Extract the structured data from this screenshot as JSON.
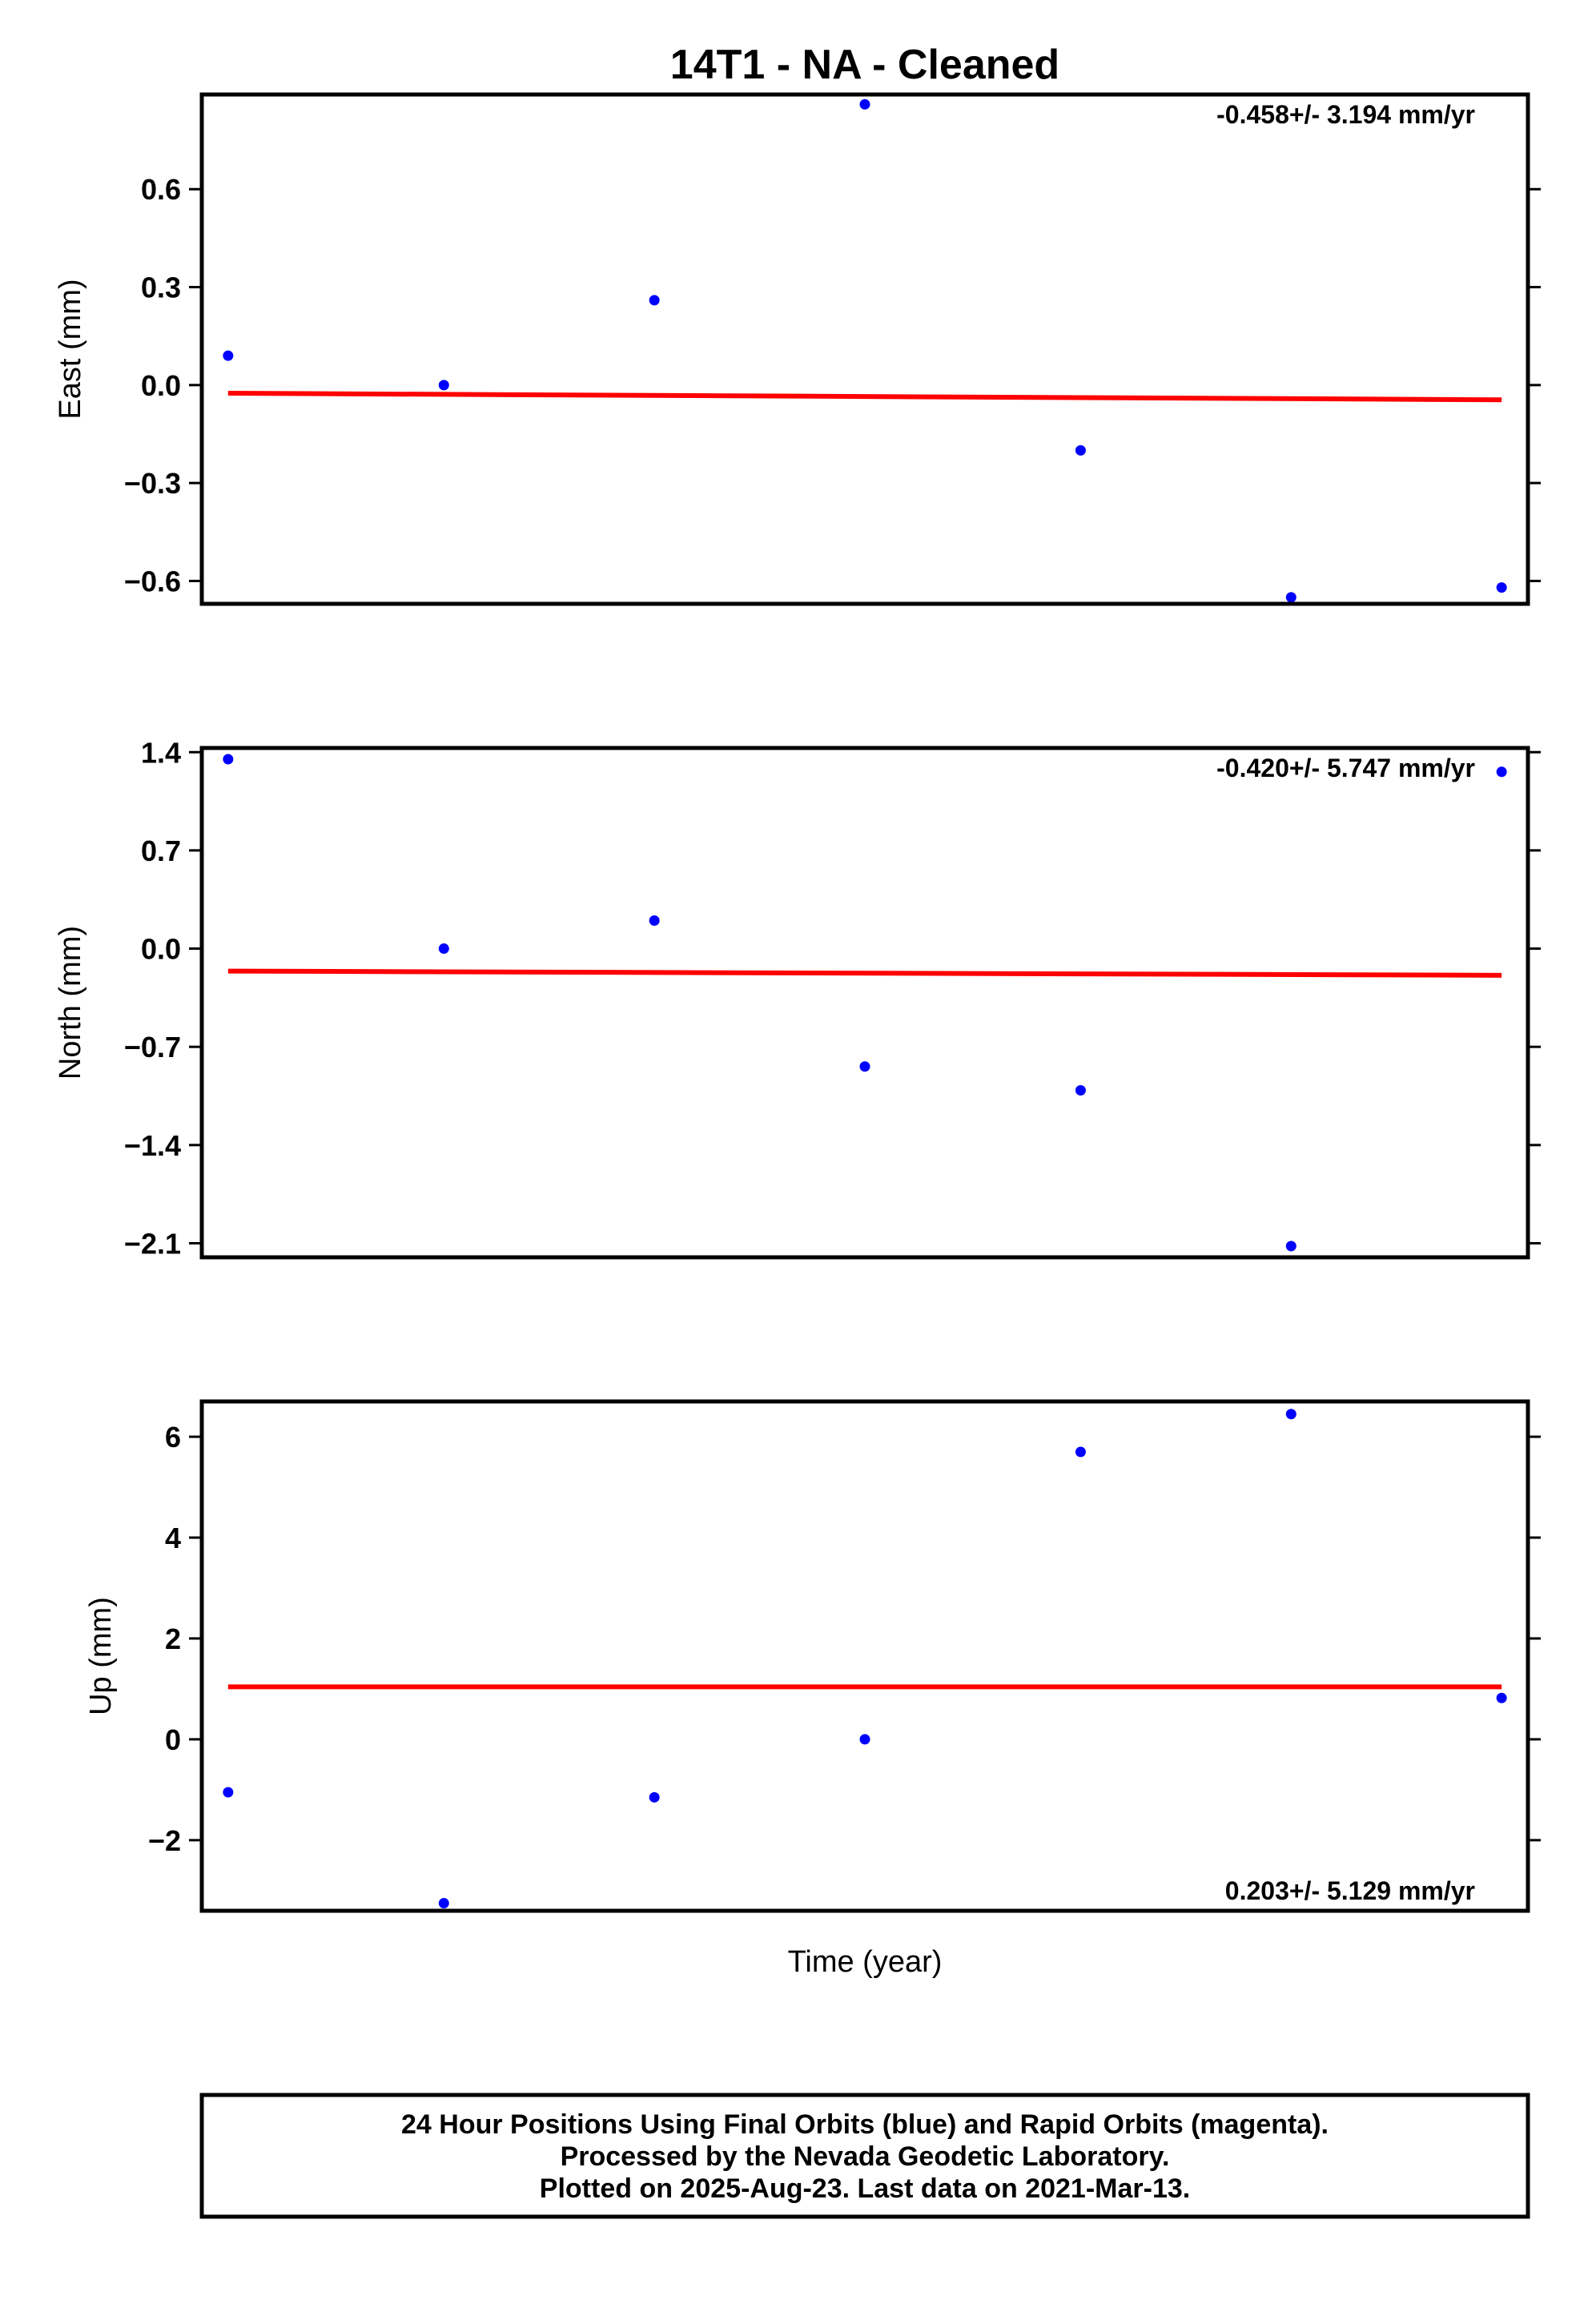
{
  "title": "14T1  - NA - Cleaned",
  "xlabel": "Time (year)",
  "footer": {
    "line1": "24 Hour Positions Using Final Orbits (blue) and Rapid Orbits (magenta).",
    "line2": "Processed by the Nevada Geodetic Laboratory.",
    "line3": "Plotted on 2025-Aug-23. Last data on 2021-Mar-13."
  },
  "colors": {
    "points": "#0000ff",
    "trend": "#ff0000",
    "frame": "#000000"
  },
  "chart_data": [
    {
      "type": "scatter",
      "ylabel": "East (mm)",
      "rate_label": "-0.458+/- 3.194 mm/yr",
      "rate_position": "top-right",
      "yticks": [
        0.6,
        0.3,
        0.0,
        -0.3,
        -0.6
      ],
      "ytick_labels": [
        "0.6",
        "0.3",
        "0.0",
        "−0.3",
        "−0.6"
      ],
      "ylim": [
        -0.67,
        0.89
      ],
      "xlim": [
        0,
        12.6
      ],
      "x": [
        0.25,
        2.3,
        4.3,
        6.3,
        8.35,
        10.35,
        12.35
      ],
      "y": [
        0.09,
        0.0,
        0.26,
        0.86,
        -0.2,
        -0.65,
        -0.62
      ],
      "trend": {
        "x": [
          0.25,
          12.35
        ],
        "y": [
          -0.025,
          -0.045
        ]
      },
      "grid": false
    },
    {
      "type": "scatter",
      "ylabel": "North (mm)",
      "rate_label": "-0.420+/- 5.747 mm/yr",
      "rate_position": "top-right",
      "yticks": [
        1.4,
        0.7,
        0.0,
        -0.7,
        -1.4,
        -2.1
      ],
      "ytick_labels": [
        "1.4",
        "0.7",
        "0.0",
        "−0.7",
        "−1.4",
        "−2.1"
      ],
      "ylim": [
        -2.2,
        1.43
      ],
      "xlim": [
        0,
        12.6
      ],
      "x": [
        0.25,
        2.3,
        4.3,
        6.3,
        8.35,
        10.35,
        12.35
      ],
      "y": [
        1.35,
        0.0,
        0.2,
        -0.84,
        -1.01,
        -2.12,
        1.26
      ],
      "trend": {
        "x": [
          0.25,
          12.35
        ],
        "y": [
          -0.16,
          -0.19
        ]
      },
      "grid": false
    },
    {
      "type": "scatter",
      "ylabel": "Up (mm)",
      "rate_label": "0.203+/- 5.129 mm/yr",
      "rate_position": "bottom-right",
      "yticks": [
        6,
        4,
        2,
        0,
        -2
      ],
      "ytick_labels": [
        "6",
        "4",
        "2",
        "0",
        "−2"
      ],
      "ylim": [
        -3.4,
        6.7
      ],
      "xlim": [
        0,
        12.6
      ],
      "x": [
        0.25,
        2.3,
        4.3,
        6.3,
        8.35,
        10.35,
        12.35
      ],
      "y": [
        -1.05,
        -3.25,
        -1.15,
        0.0,
        5.7,
        6.45,
        0.82
      ],
      "trend": {
        "x": [
          0.25,
          12.35
        ],
        "y": [
          1.04,
          1.04
        ]
      },
      "grid": false
    }
  ]
}
